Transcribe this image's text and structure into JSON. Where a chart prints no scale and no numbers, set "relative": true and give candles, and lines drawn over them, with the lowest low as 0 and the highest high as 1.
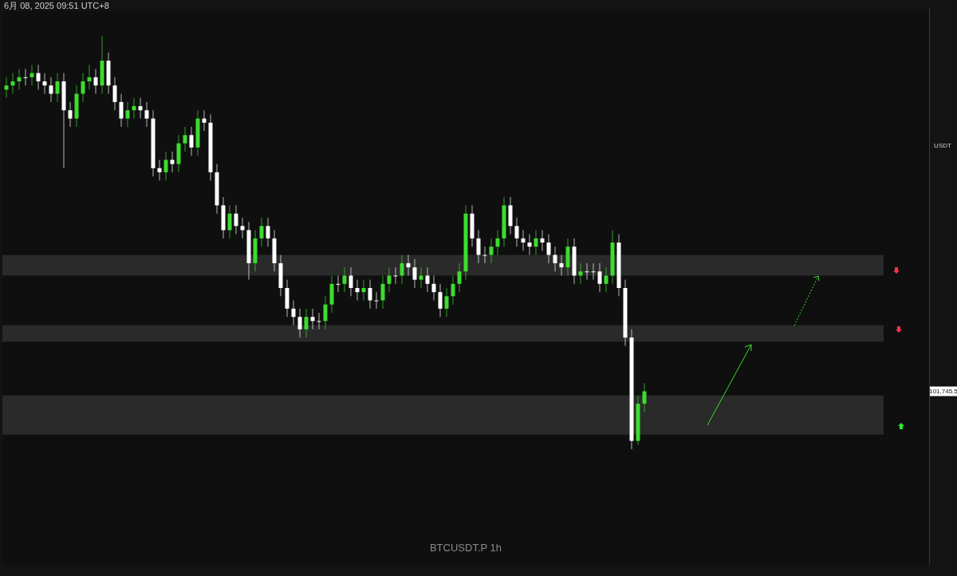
{
  "chart_data": {
    "type": "candlestick",
    "relative": true,
    "categories": [
      null,
      null,
      null,
      null,
      null,
      null,
      null,
      null,
      null,
      null,
      null,
      null,
      null,
      null,
      null,
      null,
      null,
      null,
      null,
      null,
      null,
      null,
      null,
      null,
      null,
      null,
      null,
      null,
      null,
      null,
      null,
      null,
      null,
      null,
      null,
      null,
      null,
      null,
      null,
      null,
      null,
      null,
      null,
      null,
      null,
      null,
      null,
      null,
      null,
      null,
      null,
      null,
      null,
      null,
      null,
      null,
      null,
      null,
      null,
      null,
      null,
      null,
      null,
      null,
      null,
      null,
      null,
      null,
      null,
      null,
      null,
      null,
      null,
      null,
      null,
      null,
      null,
      null,
      null,
      null,
      null,
      null,
      null,
      null,
      null,
      null,
      null,
      null,
      null,
      null,
      null,
      null,
      null,
      null,
      null,
      null,
      null,
      null,
      null,
      null,
      null
    ],
    "ohlc": [
      [
        0.87,
        0.9,
        0.85,
        0.88
      ],
      [
        0.88,
        0.91,
        0.86,
        0.89
      ],
      [
        0.89,
        0.92,
        0.87,
        0.9
      ],
      [
        0.9,
        0.92,
        0.88,
        0.9
      ],
      [
        0.9,
        0.93,
        0.88,
        0.91
      ],
      [
        0.91,
        0.93,
        0.87,
        0.89
      ],
      [
        0.89,
        0.91,
        0.86,
        0.88
      ],
      [
        0.88,
        0.9,
        0.84,
        0.86
      ],
      [
        0.86,
        0.91,
        0.84,
        0.89
      ],
      [
        0.89,
        0.91,
        0.68,
        0.82
      ],
      [
        0.82,
        0.84,
        0.78,
        0.8
      ],
      [
        0.8,
        0.88,
        0.78,
        0.86
      ],
      [
        0.86,
        0.91,
        0.84,
        0.89
      ],
      [
        0.89,
        0.93,
        0.87,
        0.9
      ],
      [
        0.9,
        0.92,
        0.86,
        0.88
      ],
      [
        0.88,
        1.0,
        0.86,
        0.94
      ],
      [
        0.94,
        0.96,
        0.86,
        0.88
      ],
      [
        0.88,
        0.9,
        0.82,
        0.84
      ],
      [
        0.84,
        0.86,
        0.78,
        0.8
      ],
      [
        0.8,
        0.84,
        0.78,
        0.82
      ],
      [
        0.82,
        0.85,
        0.8,
        0.83
      ],
      [
        0.83,
        0.85,
        0.8,
        0.82
      ],
      [
        0.82,
        0.84,
        0.78,
        0.8
      ],
      [
        0.8,
        0.82,
        0.66,
        0.68
      ],
      [
        0.68,
        0.7,
        0.65,
        0.67
      ],
      [
        0.67,
        0.72,
        0.65,
        0.7
      ],
      [
        0.7,
        0.72,
        0.67,
        0.69
      ],
      [
        0.69,
        0.76,
        0.67,
        0.74
      ],
      [
        0.74,
        0.78,
        0.72,
        0.76
      ],
      [
        0.76,
        0.78,
        0.71,
        0.73
      ],
      [
        0.73,
        0.82,
        0.71,
        0.8
      ],
      [
        0.8,
        0.82,
        0.77,
        0.79
      ],
      [
        0.79,
        0.81,
        0.65,
        0.67
      ],
      [
        0.67,
        0.69,
        0.57,
        0.59
      ],
      [
        0.59,
        0.61,
        0.51,
        0.53
      ],
      [
        0.53,
        0.59,
        0.51,
        0.57
      ],
      [
        0.57,
        0.59,
        0.52,
        0.54
      ],
      [
        0.54,
        0.56,
        0.51,
        0.53
      ],
      [
        0.53,
        0.55,
        0.41,
        0.45
      ],
      [
        0.45,
        0.53,
        0.43,
        0.51
      ],
      [
        0.51,
        0.56,
        0.49,
        0.54
      ],
      [
        0.54,
        0.56,
        0.49,
        0.51
      ],
      [
        0.51,
        0.53,
        0.43,
        0.45
      ],
      [
        0.45,
        0.47,
        0.37,
        0.39
      ],
      [
        0.39,
        0.41,
        0.32,
        0.34
      ],
      [
        0.34,
        0.36,
        0.3,
        0.32
      ],
      [
        0.32,
        0.34,
        0.27,
        0.29
      ],
      [
        0.29,
        0.34,
        0.27,
        0.32
      ],
      [
        0.32,
        0.34,
        0.29,
        0.31
      ],
      [
        0.31,
        0.33,
        0.29,
        0.31
      ],
      [
        0.31,
        0.37,
        0.29,
        0.35
      ],
      [
        0.35,
        0.42,
        0.33,
        0.4
      ],
      [
        0.4,
        0.42,
        0.38,
        0.4
      ],
      [
        0.4,
        0.44,
        0.38,
        0.42
      ],
      [
        0.42,
        0.44,
        0.37,
        0.39
      ],
      [
        0.39,
        0.41,
        0.36,
        0.38
      ],
      [
        0.38,
        0.41,
        0.36,
        0.39
      ],
      [
        0.39,
        0.41,
        0.34,
        0.36
      ],
      [
        0.36,
        0.38,
        0.34,
        0.36
      ],
      [
        0.36,
        0.42,
        0.34,
        0.4
      ],
      [
        0.4,
        0.44,
        0.38,
        0.42
      ],
      [
        0.42,
        0.44,
        0.4,
        0.42
      ],
      [
        0.42,
        0.47,
        0.4,
        0.45
      ],
      [
        0.45,
        0.47,
        0.42,
        0.44
      ],
      [
        0.44,
        0.46,
        0.39,
        0.41
      ],
      [
        0.41,
        0.44,
        0.39,
        0.42
      ],
      [
        0.42,
        0.44,
        0.38,
        0.4
      ],
      [
        0.4,
        0.42,
        0.36,
        0.38
      ],
      [
        0.38,
        0.4,
        0.32,
        0.34
      ],
      [
        0.34,
        0.39,
        0.32,
        0.37
      ],
      [
        0.37,
        0.42,
        0.35,
        0.4
      ],
      [
        0.4,
        0.45,
        0.38,
        0.43
      ],
      [
        0.43,
        0.59,
        0.41,
        0.57
      ],
      [
        0.57,
        0.59,
        0.49,
        0.51
      ],
      [
        0.51,
        0.53,
        0.45,
        0.47
      ],
      [
        0.47,
        0.49,
        0.45,
        0.47
      ],
      [
        0.47,
        0.51,
        0.45,
        0.49
      ],
      [
        0.49,
        0.53,
        0.47,
        0.51
      ],
      [
        0.51,
        0.61,
        0.49,
        0.59
      ],
      [
        0.59,
        0.61,
        0.52,
        0.54
      ],
      [
        0.54,
        0.56,
        0.49,
        0.51
      ],
      [
        0.51,
        0.53,
        0.48,
        0.5
      ],
      [
        0.5,
        0.52,
        0.47,
        0.49
      ],
      [
        0.49,
        0.53,
        0.47,
        0.51
      ],
      [
        0.51,
        0.53,
        0.48,
        0.5
      ],
      [
        0.5,
        0.52,
        0.45,
        0.47
      ],
      [
        0.47,
        0.49,
        0.43,
        0.45
      ],
      [
        0.45,
        0.47,
        0.42,
        0.44
      ],
      [
        0.44,
        0.51,
        0.42,
        0.49
      ],
      [
        0.49,
        0.51,
        0.4,
        0.42
      ],
      [
        0.42,
        0.45,
        0.4,
        0.43
      ],
      [
        0.43,
        0.45,
        0.41,
        0.43
      ],
      [
        0.43,
        0.45,
        0.41,
        0.43
      ],
      [
        0.43,
        0.45,
        0.38,
        0.4
      ],
      [
        0.4,
        0.44,
        0.38,
        0.42
      ],
      [
        0.42,
        0.53,
        0.4,
        0.5
      ],
      [
        0.5,
        0.52,
        0.37,
        0.39
      ],
      [
        0.39,
        0.41,
        0.25,
        0.27
      ],
      [
        0.27,
        0.29,
        0.0,
        0.02
      ],
      [
        0.02,
        0.13,
        0.01,
        0.11
      ],
      [
        0.11,
        0.16,
        0.09,
        0.14
      ]
    ],
    "colors": [
      "#3ddc2f",
      "#3ddc2f",
      "#3ddc2f",
      "#ffffff",
      "#3ddc2f",
      "#ffffff",
      "#ffffff",
      "#ffffff",
      "#3ddc2f",
      "#ffffff",
      "#ffffff",
      "#3ddc2f",
      "#3ddc2f",
      "#3ddc2f",
      "#ffffff",
      "#3ddc2f",
      "#ffffff",
      "#ffffff",
      "#ffffff",
      "#3ddc2f",
      "#3ddc2f",
      "#ffffff",
      "#ffffff",
      "#ffffff",
      "#ffffff",
      "#3ddc2f",
      "#ffffff",
      "#3ddc2f",
      "#3ddc2f",
      "#ffffff",
      "#3ddc2f",
      "#ffffff",
      "#ffffff",
      "#ffffff",
      "#ffffff",
      "#3ddc2f",
      "#ffffff",
      "#ffffff",
      "#ffffff",
      "#3ddc2f",
      "#3ddc2f",
      "#ffffff",
      "#ffffff",
      "#ffffff",
      "#ffffff",
      "#ffffff",
      "#ffffff",
      "#3ddc2f",
      "#ffffff",
      "#ffffff",
      "#3ddc2f",
      "#3ddc2f",
      "#ffffff",
      "#3ddc2f",
      "#ffffff",
      "#ffffff",
      "#3ddc2f",
      "#ffffff",
      "#ffffff",
      "#3ddc2f",
      "#3ddc2f",
      "#ffffff",
      "#3ddc2f",
      "#ffffff",
      "#ffffff",
      "#3ddc2f",
      "#ffffff",
      "#ffffff",
      "#ffffff",
      "#3ddc2f",
      "#3ddc2f",
      "#3ddc2f",
      "#3ddc2f",
      "#ffffff",
      "#ffffff",
      "#ffffff",
      "#3ddc2f",
      "#3ddc2f",
      "#3ddc2f",
      "#ffffff",
      "#ffffff",
      "#ffffff",
      "#ffffff",
      "#3ddc2f",
      "#ffffff",
      "#ffffff",
      "#ffffff",
      "#ffffff",
      "#3ddc2f",
      "#ffffff",
      "#3ddc2f",
      "#ffffff",
      "#ffffff",
      "#ffffff",
      "#3ddc2f",
      "#3ddc2f",
      "#ffffff",
      "#ffffff",
      "#ffffff",
      "#3ddc2f",
      "#3ddc2f"
    ],
    "bands": [
      {
        "axis": "y",
        "from": 0.42,
        "to": 0.47,
        "color": "#2a2a2a"
      },
      {
        "axis": "y",
        "from": 0.26,
        "to": 0.3,
        "color": "#2a2a2a"
      },
      {
        "axis": "y",
        "from": 0.035,
        "to": 0.13,
        "color": "#2a2a2a"
      }
    ],
    "annotations": [
      "6月 08, 2025 09:51 UTC+8",
      "BTCUSDT.P   1h",
      "USDT",
      "101,745.5"
    ]
  }
}
